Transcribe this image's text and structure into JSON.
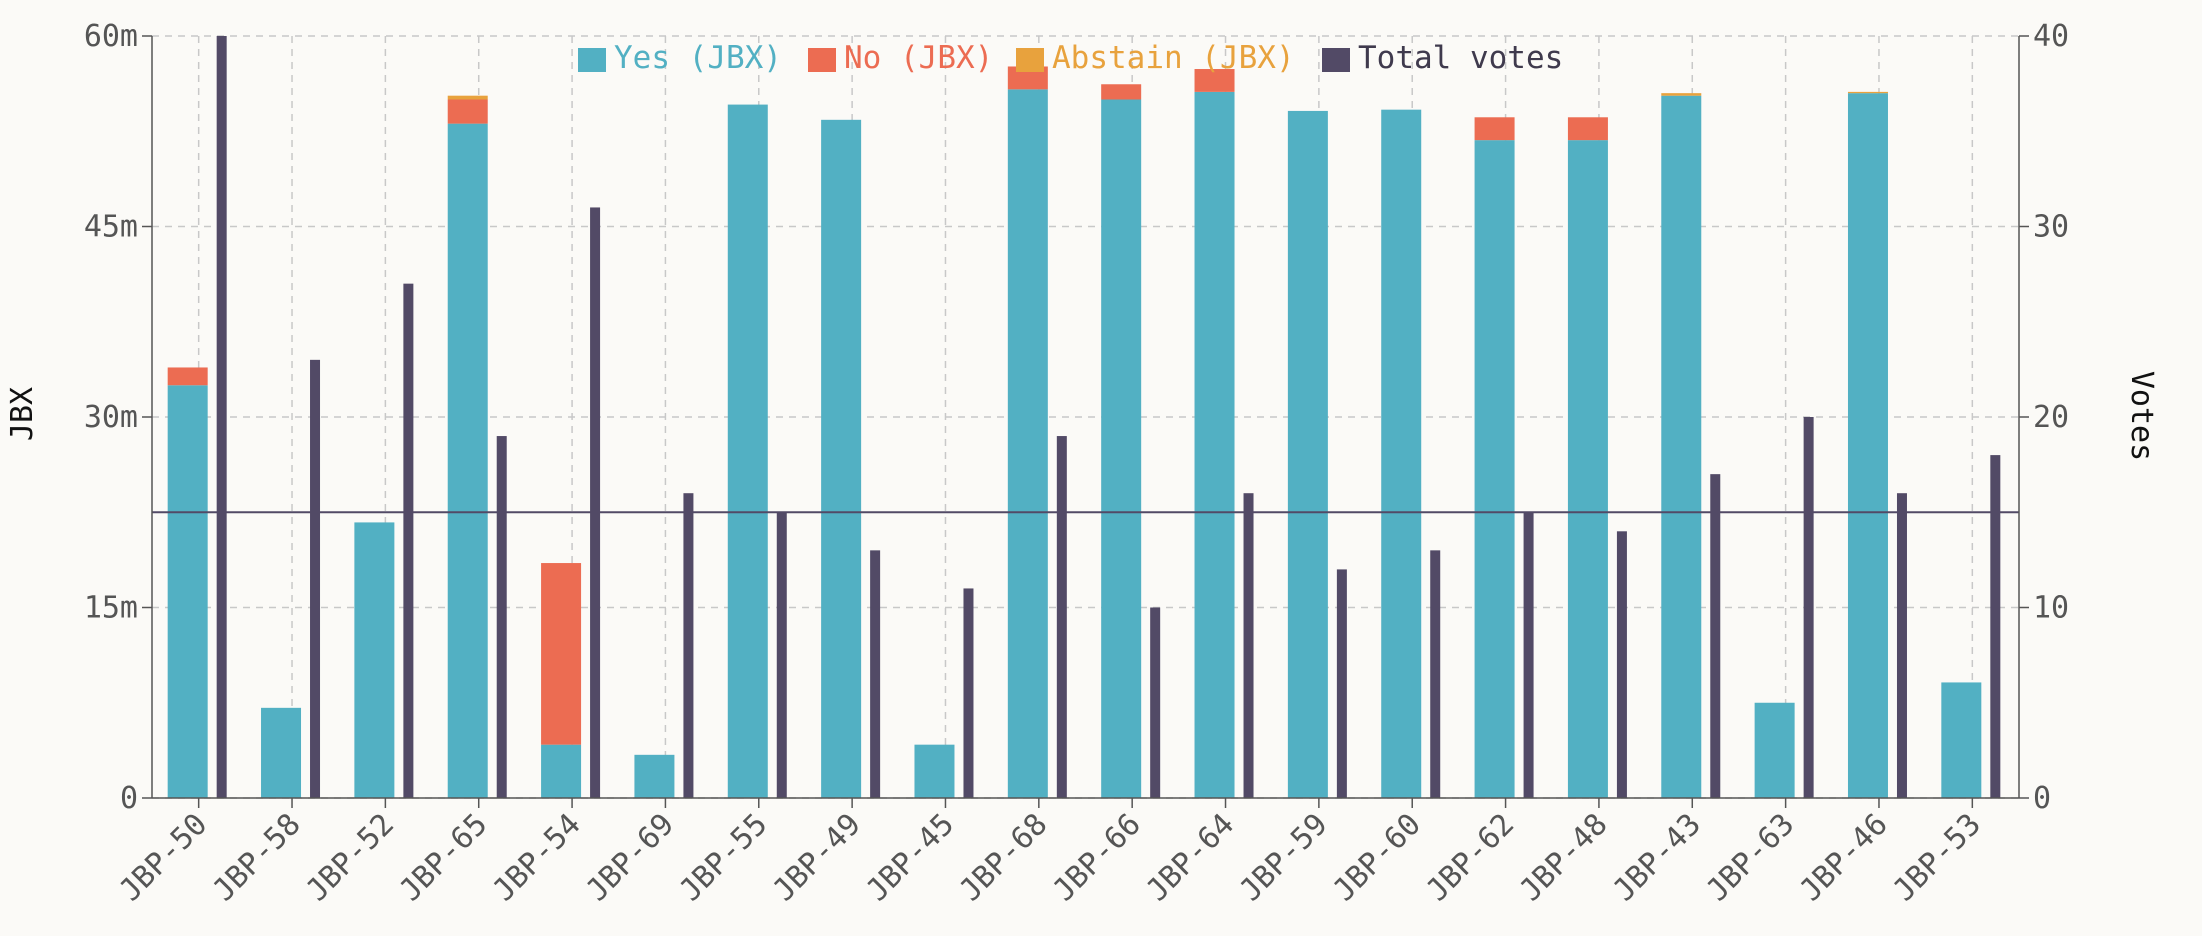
{
  "chart_data": {
    "type": "bar",
    "title": "",
    "xlabel": "",
    "ylabel": "JBX",
    "y2label": "Votes",
    "ylim": [
      0,
      60
    ],
    "y2lim": [
      0,
      40
    ],
    "yticks": [
      0,
      15,
      30,
      45,
      60
    ],
    "ytick_labels": [
      "0",
      "15m",
      "30m",
      "45m",
      "60m"
    ],
    "y2ticks": [
      0,
      10,
      20,
      30,
      40
    ],
    "y2tick_labels": [
      "0",
      "10",
      "20",
      "30",
      "40"
    ],
    "grid": true,
    "legend_position": "top-center",
    "reference_line_votes": 15,
    "categories": [
      "JBP-50",
      "JBP-58",
      "JBP-52",
      "JBP-65",
      "JBP-54",
      "JBP-69",
      "JBP-55",
      "JBP-49",
      "JBP-45",
      "JBP-68",
      "JBP-66",
      "JBP-64",
      "JBP-59",
      "JBP-60",
      "JBP-62",
      "JBP-48",
      "JBP-43",
      "JBP-63",
      "JBP-46",
      "JBP-53"
    ],
    "series": [
      {
        "name": "Yes (JBX)",
        "axis": "left",
        "color": "#52b0c3",
        "values": [
          32.5,
          7.1,
          21.7,
          53.1,
          4.2,
          3.4,
          54.6,
          53.4,
          4.2,
          55.8,
          55.0,
          55.6,
          54.1,
          54.2,
          51.8,
          51.8,
          55.3,
          7.5,
          55.5,
          9.1
        ]
      },
      {
        "name": "No (JBX)",
        "axis": "left",
        "color": "#ec6c52",
        "values": [
          1.4,
          0,
          0,
          1.9,
          14.3,
          0,
          0,
          0,
          0,
          1.8,
          1.2,
          1.8,
          0,
          0,
          1.8,
          1.8,
          0,
          0,
          0,
          0
        ]
      },
      {
        "name": "Abstain (JBX)",
        "axis": "left",
        "color": "#e8a23d",
        "values": [
          0,
          0,
          0,
          0.3,
          0,
          0,
          0,
          0,
          0,
          0,
          0,
          0,
          0,
          0,
          0,
          0,
          0.2,
          0,
          0.1,
          0
        ]
      },
      {
        "name": "Total votes",
        "axis": "right",
        "color": "#524a66",
        "values": [
          40,
          23,
          27,
          19,
          31,
          16,
          15,
          13,
          11,
          19,
          10,
          16,
          12,
          13,
          15,
          14,
          17,
          20,
          16,
          18
        ]
      }
    ]
  }
}
